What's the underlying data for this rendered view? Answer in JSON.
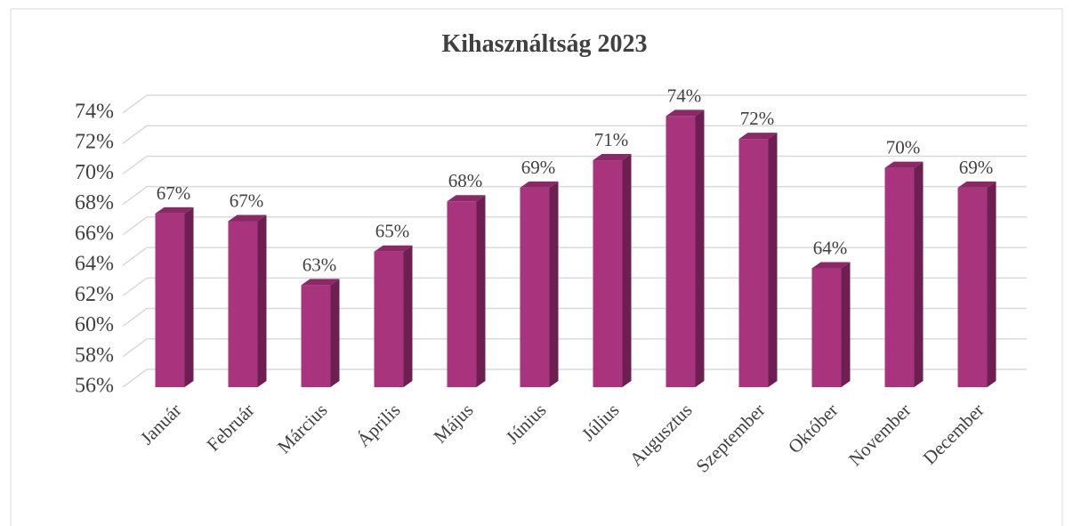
{
  "chart_data": {
    "type": "bar",
    "title": "Kihasználtság 2023",
    "categories": [
      "Január",
      "Február",
      "Március",
      "Április",
      "Május",
      "Június",
      "Július",
      "Augusztus",
      "Szeptember",
      "Október",
      "November",
      "December"
    ],
    "values": [
      67.4,
      66.9,
      62.7,
      64.9,
      68.2,
      69.1,
      70.9,
      73.8,
      72.3,
      63.8,
      70.4,
      69.1
    ],
    "value_labels": [
      "67%",
      "67%",
      "63%",
      "65%",
      "68%",
      "69%",
      "71%",
      "74%",
      "72%",
      "64%",
      "70%",
      "69%"
    ],
    "color": "#a8347e",
    "ylim": [
      56,
      74
    ],
    "yticks": [
      {
        "value": 56,
        "label": "56%"
      },
      {
        "value": 58,
        "label": "58%"
      },
      {
        "value": 60,
        "label": "60%"
      },
      {
        "value": 62,
        "label": "62%"
      },
      {
        "value": 64,
        "label": "64%"
      },
      {
        "value": 66,
        "label": "66%"
      },
      {
        "value": 68,
        "label": "68%"
      },
      {
        "value": 70,
        "label": "70%"
      },
      {
        "value": 72,
        "label": "72%"
      },
      {
        "value": 74,
        "label": "74%"
      }
    ],
    "grid": true
  }
}
